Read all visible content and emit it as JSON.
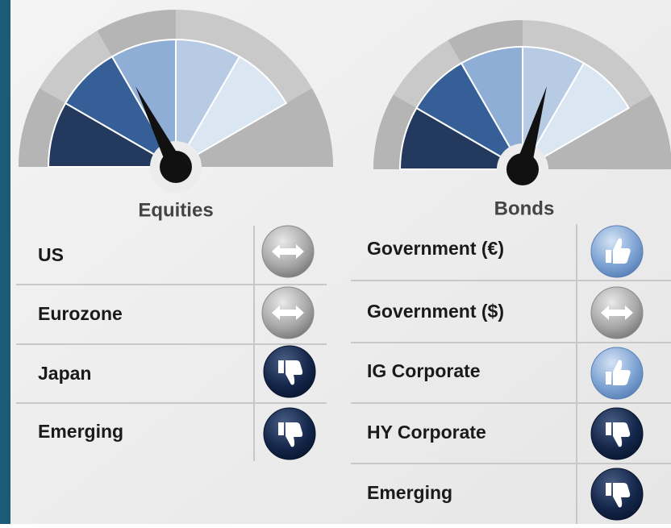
{
  "panels": [
    {
      "label": "Equities",
      "rows": [
        "US",
        "Eurozone",
        "Japan",
        "Emerging"
      ]
    },
    {
      "label": "Bonds",
      "rows": [
        "Government (€)",
        "Government ($)",
        "IG Corporate",
        "HY Corporate",
        "Emerging"
      ]
    }
  ]
}
